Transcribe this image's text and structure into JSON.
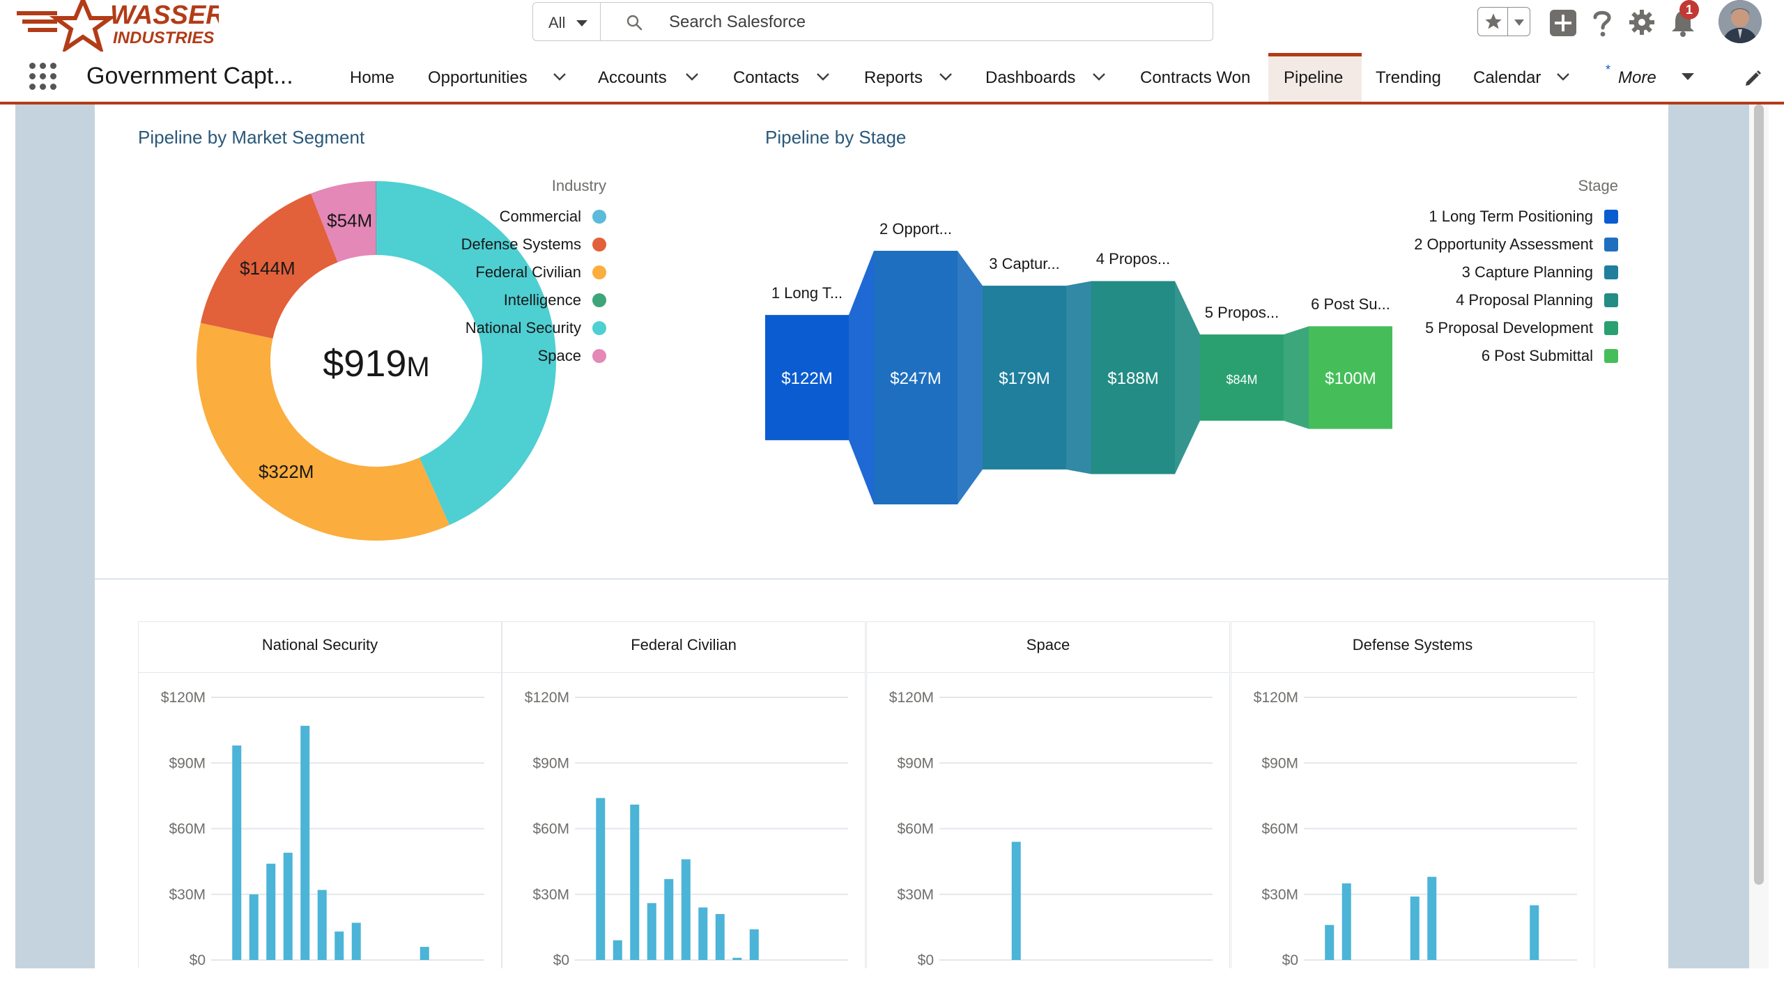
{
  "header": {
    "logo_line1": "WASSER",
    "logo_line2": "INDUSTRIES",
    "search_scope": "All",
    "search_placeholder": "Search Salesforce",
    "notification_count": "1",
    "brand_color": "#b23c17"
  },
  "nav": {
    "app_name": "Government Capt...",
    "items": [
      {
        "label": "Home",
        "has_menu": false
      },
      {
        "label": "Opportunities",
        "has_menu": true
      },
      {
        "label": "Accounts",
        "has_menu": true
      },
      {
        "label": "Contacts",
        "has_menu": true
      },
      {
        "label": "Reports",
        "has_menu": true
      },
      {
        "label": "Dashboards",
        "has_menu": true
      },
      {
        "label": "Contracts Won",
        "has_menu": false
      },
      {
        "label": "Pipeline",
        "has_menu": false,
        "active": true
      },
      {
        "label": "Trending",
        "has_menu": false
      },
      {
        "label": "Calendar",
        "has_menu": true
      }
    ],
    "more_label": "More",
    "more_marker": "*"
  },
  "donut": {
    "title": "Pipeline by Market Segment",
    "legend_title": "Industry",
    "center_value": "$919",
    "center_unit": "M",
    "legend": [
      {
        "label": "Commercial",
        "color": "#5bbbd9"
      },
      {
        "label": "Defense Systems",
        "color": "#e2603a"
      },
      {
        "label": "Federal Civilian",
        "color": "#fbad3d"
      },
      {
        "label": "Intelligence",
        "color": "#3ea57a"
      },
      {
        "label": "National Security",
        "color": "#4ecfd2"
      },
      {
        "label": "Space",
        "color": "#e388b7"
      }
    ],
    "slice_labels": {
      "space": "$54M",
      "defense": "$144M",
      "federal": "$322M"
    }
  },
  "funnel": {
    "title": "Pipeline by Stage",
    "legend_title": "Stage",
    "legend": [
      {
        "label": "1 Long Term Positioning",
        "color": "#0b5cd0"
      },
      {
        "label": "2 Opportunity Assessment",
        "color": "#1e6fbf"
      },
      {
        "label": "3 Capture Planning",
        "color": "#1f7f9d"
      },
      {
        "label": "4 Proposal Planning",
        "color": "#238c84"
      },
      {
        "label": "5 Proposal Development",
        "color": "#2aa070"
      },
      {
        "label": "6 Post Submittal",
        "color": "#45be5a"
      }
    ],
    "stage_labels": [
      "1 Long T...",
      "2 Opport...",
      "3 Captur...",
      "4 Propos...",
      "5 Propos...",
      "6 Post Su..."
    ],
    "value_labels": [
      "$122M",
      "$247M",
      "$179M",
      "$188M",
      "$84M",
      "$100M"
    ]
  },
  "chart_data": [
    {
      "type": "pie",
      "title": "Pipeline by Market Segment",
      "legend_title": "Industry",
      "categories": [
        "Commercial",
        "Defense Systems",
        "Federal Civilian",
        "Intelligence",
        "National Security",
        "Space"
      ],
      "values": [
        1,
        144,
        322,
        0.5,
        397,
        54
      ],
      "unit": "$M",
      "total": 919,
      "colors": [
        "#5bbbd9",
        "#e2603a",
        "#fbad3d",
        "#3ea57a",
        "#4ecfd2",
        "#e388b7"
      ]
    },
    {
      "type": "bar",
      "subtype": "funnel",
      "title": "Pipeline by Stage",
      "legend_title": "Stage",
      "categories": [
        "1 Long Term Positioning",
        "2 Opportunity Assessment",
        "3 Capture Planning",
        "4 Proposal Planning",
        "5 Proposal Development",
        "6 Post Submittal"
      ],
      "values": [
        122,
        247,
        179,
        188,
        84,
        100
      ],
      "unit": "$M",
      "colors": [
        "#0b5cd0",
        "#1e6fbf",
        "#1f7f9d",
        "#238c84",
        "#2aa070",
        "#45be5a"
      ]
    },
    {
      "type": "bar",
      "title": "National Security",
      "y_ticks": [
        "$0",
        "$30M",
        "$60M",
        "$90M",
        "$120M"
      ],
      "ylim": [
        0,
        120
      ],
      "values": [
        98,
        30,
        44,
        49,
        107,
        32,
        13,
        17,
        0,
        0,
        0,
        6,
        0,
        0
      ],
      "color": "#4bb4d7"
    },
    {
      "type": "bar",
      "title": "Federal Civilian",
      "y_ticks": [
        "$0",
        "$30M",
        "$60M",
        "$90M",
        "$120M"
      ],
      "ylim": [
        0,
        120
      ],
      "values": [
        74,
        9,
        71,
        26,
        37,
        46,
        24,
        21,
        1,
        14
      ],
      "color": "#4bb4d7"
    },
    {
      "type": "bar",
      "title": "Space",
      "y_ticks": [
        "$0",
        "$30M",
        "$60M",
        "$90M",
        "$120M"
      ],
      "ylim": [
        0,
        120
      ],
      "values": [
        54
      ],
      "color": "#4bb4d7"
    },
    {
      "type": "bar",
      "title": "Defense Systems",
      "y_ticks": [
        "$0",
        "$30M",
        "$60M",
        "$90M",
        "$120M"
      ],
      "ylim": [
        0,
        120
      ],
      "values": [
        16,
        35,
        0,
        0,
        0,
        29,
        38,
        0,
        0,
        0,
        0,
        0,
        25
      ],
      "color": "#4bb4d7"
    }
  ]
}
